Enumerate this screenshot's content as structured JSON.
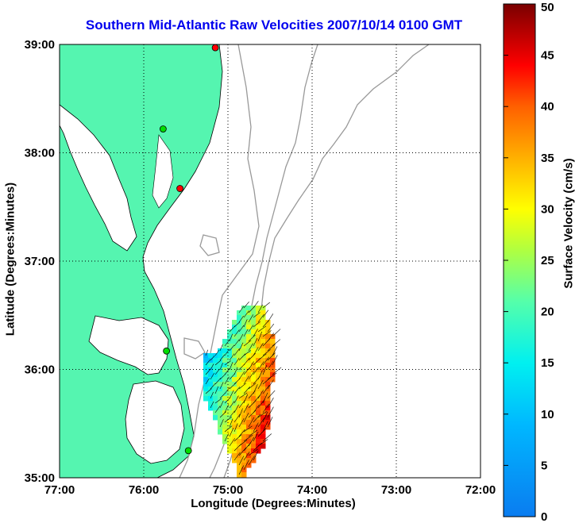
{
  "map": {
    "title": "Southern Mid-Atlantic Raw Velocities 2007/10/14 0100 GMT",
    "xlabel": "Longitude (Degrees:Minutes)",
    "ylabel": "Latitude (Degrees:Minutes)",
    "x_ticks": [
      "77:00",
      "76:00",
      "75:00",
      "74:00",
      "73:00",
      "72:00"
    ],
    "y_ticks": [
      "39:00",
      "38:00",
      "37:00",
      "36:00",
      "35:00"
    ],
    "lon_range": [
      -77,
      -72
    ],
    "lat_range": [
      35,
      39
    ],
    "colors": {
      "land": "#55f5b0",
      "coastline": "#000000",
      "bathymetry": "#999999",
      "grid": "#000000"
    },
    "stations": [
      {
        "lon": -75.15,
        "lat": 38.97,
        "color": "#ff0000"
      },
      {
        "lon": -75.77,
        "lat": 38.22,
        "color": "#00dd00"
      },
      {
        "lon": -75.57,
        "lat": 37.67,
        "color": "#ff0000"
      },
      {
        "lon": -75.73,
        "lat": 36.17,
        "color": "#00dd00"
      },
      {
        "lon": -75.47,
        "lat": 35.25,
        "color": "#00dd00"
      }
    ]
  },
  "colorbar": {
    "label": "Surface Velocity (cm/s)",
    "ticks": [
      "0",
      "5",
      "10",
      "15",
      "20",
      "25",
      "30",
      "35",
      "40",
      "45",
      "50"
    ],
    "min": 0,
    "max": 50,
    "colormap": "jet"
  }
}
